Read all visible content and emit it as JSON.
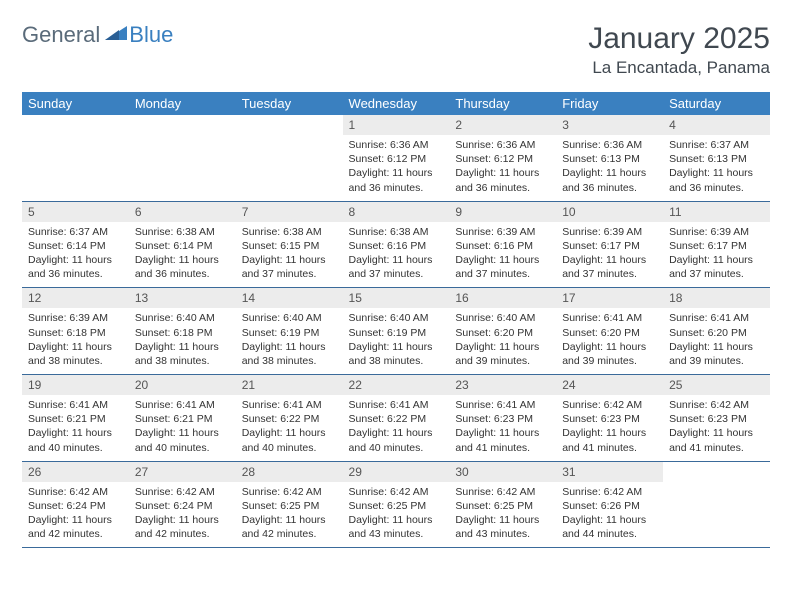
{
  "logo": {
    "text1": "General",
    "text2": "Blue"
  },
  "title": "January 2025",
  "location": "La Encantada, Panama",
  "colors": {
    "header_bg": "#3a80c0",
    "header_text": "#ffffff",
    "daynum_bg": "#ececec",
    "border": "#3a6a9a",
    "body_text": "#333333",
    "logo_gray": "#5a6b7a",
    "logo_blue": "#3a80c0"
  },
  "weekdays": [
    "Sunday",
    "Monday",
    "Tuesday",
    "Wednesday",
    "Thursday",
    "Friday",
    "Saturday"
  ],
  "weeks": [
    [
      null,
      null,
      null,
      {
        "n": "1",
        "sr": "Sunrise: 6:36 AM",
        "ss": "Sunset: 6:12 PM",
        "dl": "Daylight: 11 hours and 36 minutes."
      },
      {
        "n": "2",
        "sr": "Sunrise: 6:36 AM",
        "ss": "Sunset: 6:12 PM",
        "dl": "Daylight: 11 hours and 36 minutes."
      },
      {
        "n": "3",
        "sr": "Sunrise: 6:36 AM",
        "ss": "Sunset: 6:13 PM",
        "dl": "Daylight: 11 hours and 36 minutes."
      },
      {
        "n": "4",
        "sr": "Sunrise: 6:37 AM",
        "ss": "Sunset: 6:13 PM",
        "dl": "Daylight: 11 hours and 36 minutes."
      }
    ],
    [
      {
        "n": "5",
        "sr": "Sunrise: 6:37 AM",
        "ss": "Sunset: 6:14 PM",
        "dl": "Daylight: 11 hours and 36 minutes."
      },
      {
        "n": "6",
        "sr": "Sunrise: 6:38 AM",
        "ss": "Sunset: 6:14 PM",
        "dl": "Daylight: 11 hours and 36 minutes."
      },
      {
        "n": "7",
        "sr": "Sunrise: 6:38 AM",
        "ss": "Sunset: 6:15 PM",
        "dl": "Daylight: 11 hours and 37 minutes."
      },
      {
        "n": "8",
        "sr": "Sunrise: 6:38 AM",
        "ss": "Sunset: 6:16 PM",
        "dl": "Daylight: 11 hours and 37 minutes."
      },
      {
        "n": "9",
        "sr": "Sunrise: 6:39 AM",
        "ss": "Sunset: 6:16 PM",
        "dl": "Daylight: 11 hours and 37 minutes."
      },
      {
        "n": "10",
        "sr": "Sunrise: 6:39 AM",
        "ss": "Sunset: 6:17 PM",
        "dl": "Daylight: 11 hours and 37 minutes."
      },
      {
        "n": "11",
        "sr": "Sunrise: 6:39 AM",
        "ss": "Sunset: 6:17 PM",
        "dl": "Daylight: 11 hours and 37 minutes."
      }
    ],
    [
      {
        "n": "12",
        "sr": "Sunrise: 6:39 AM",
        "ss": "Sunset: 6:18 PM",
        "dl": "Daylight: 11 hours and 38 minutes."
      },
      {
        "n": "13",
        "sr": "Sunrise: 6:40 AM",
        "ss": "Sunset: 6:18 PM",
        "dl": "Daylight: 11 hours and 38 minutes."
      },
      {
        "n": "14",
        "sr": "Sunrise: 6:40 AM",
        "ss": "Sunset: 6:19 PM",
        "dl": "Daylight: 11 hours and 38 minutes."
      },
      {
        "n": "15",
        "sr": "Sunrise: 6:40 AM",
        "ss": "Sunset: 6:19 PM",
        "dl": "Daylight: 11 hours and 38 minutes."
      },
      {
        "n": "16",
        "sr": "Sunrise: 6:40 AM",
        "ss": "Sunset: 6:20 PM",
        "dl": "Daylight: 11 hours and 39 minutes."
      },
      {
        "n": "17",
        "sr": "Sunrise: 6:41 AM",
        "ss": "Sunset: 6:20 PM",
        "dl": "Daylight: 11 hours and 39 minutes."
      },
      {
        "n": "18",
        "sr": "Sunrise: 6:41 AM",
        "ss": "Sunset: 6:20 PM",
        "dl": "Daylight: 11 hours and 39 minutes."
      }
    ],
    [
      {
        "n": "19",
        "sr": "Sunrise: 6:41 AM",
        "ss": "Sunset: 6:21 PM",
        "dl": "Daylight: 11 hours and 40 minutes."
      },
      {
        "n": "20",
        "sr": "Sunrise: 6:41 AM",
        "ss": "Sunset: 6:21 PM",
        "dl": "Daylight: 11 hours and 40 minutes."
      },
      {
        "n": "21",
        "sr": "Sunrise: 6:41 AM",
        "ss": "Sunset: 6:22 PM",
        "dl": "Daylight: 11 hours and 40 minutes."
      },
      {
        "n": "22",
        "sr": "Sunrise: 6:41 AM",
        "ss": "Sunset: 6:22 PM",
        "dl": "Daylight: 11 hours and 40 minutes."
      },
      {
        "n": "23",
        "sr": "Sunrise: 6:41 AM",
        "ss": "Sunset: 6:23 PM",
        "dl": "Daylight: 11 hours and 41 minutes."
      },
      {
        "n": "24",
        "sr": "Sunrise: 6:42 AM",
        "ss": "Sunset: 6:23 PM",
        "dl": "Daylight: 11 hours and 41 minutes."
      },
      {
        "n": "25",
        "sr": "Sunrise: 6:42 AM",
        "ss": "Sunset: 6:23 PM",
        "dl": "Daylight: 11 hours and 41 minutes."
      }
    ],
    [
      {
        "n": "26",
        "sr": "Sunrise: 6:42 AM",
        "ss": "Sunset: 6:24 PM",
        "dl": "Daylight: 11 hours and 42 minutes."
      },
      {
        "n": "27",
        "sr": "Sunrise: 6:42 AM",
        "ss": "Sunset: 6:24 PM",
        "dl": "Daylight: 11 hours and 42 minutes."
      },
      {
        "n": "28",
        "sr": "Sunrise: 6:42 AM",
        "ss": "Sunset: 6:25 PM",
        "dl": "Daylight: 11 hours and 42 minutes."
      },
      {
        "n": "29",
        "sr": "Sunrise: 6:42 AM",
        "ss": "Sunset: 6:25 PM",
        "dl": "Daylight: 11 hours and 43 minutes."
      },
      {
        "n": "30",
        "sr": "Sunrise: 6:42 AM",
        "ss": "Sunset: 6:25 PM",
        "dl": "Daylight: 11 hours and 43 minutes."
      },
      {
        "n": "31",
        "sr": "Sunrise: 6:42 AM",
        "ss": "Sunset: 6:26 PM",
        "dl": "Daylight: 11 hours and 44 minutes."
      },
      null
    ]
  ]
}
